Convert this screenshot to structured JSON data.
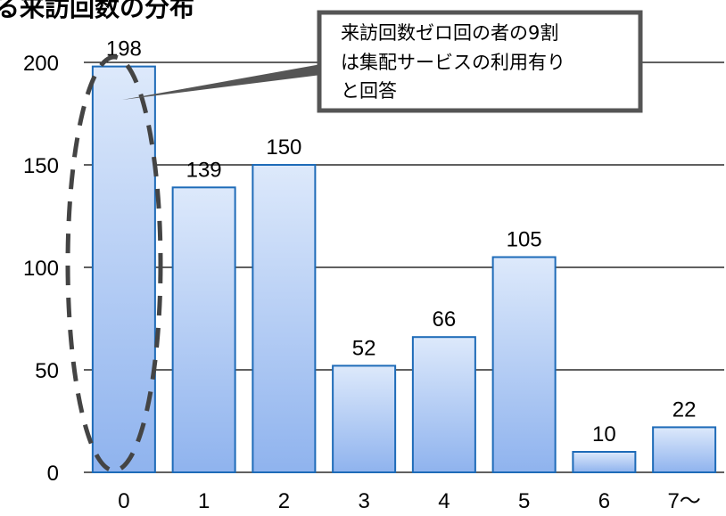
{
  "title_fragment": "る来訪回数の分布",
  "callout": {
    "lines": [
      "来訪回数ゼロ回の者の9割",
      "は集配サービスの利用有り",
      "と回答"
    ]
  },
  "chart_data": {
    "type": "bar",
    "categories": [
      "0",
      "1",
      "2",
      "3",
      "4",
      "5",
      "6",
      "7～"
    ],
    "values": [
      198,
      139,
      150,
      52,
      66,
      105,
      10,
      22
    ],
    "data_labels": [
      "198",
      "139",
      "150",
      "52",
      "66",
      "105",
      "10",
      "22"
    ],
    "ylim": [
      0,
      200
    ],
    "yticks": [
      "0",
      "50",
      "100",
      "150",
      "200"
    ],
    "grid": true,
    "bar_color_top": "#dde9fb",
    "bar_color_bottom": "#8fb3ee",
    "bar_border": "#1e6bb8",
    "highlight_category": "0"
  }
}
